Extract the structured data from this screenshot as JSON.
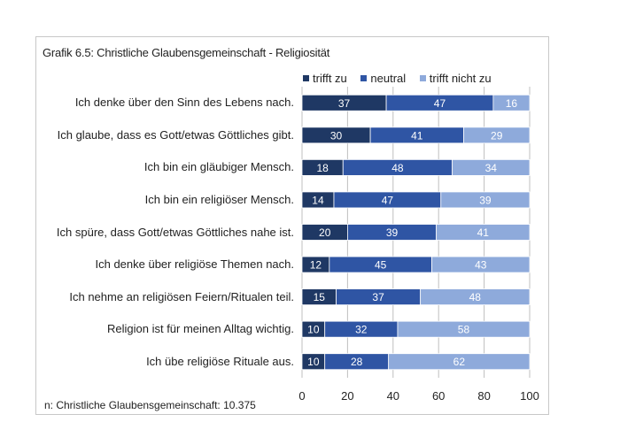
{
  "chart_data": {
    "type": "bar",
    "orientation": "horizontal",
    "stacked": true,
    "title": "Grafik 6.5: Christliche Glaubensgemeinschaft - Religiosität",
    "categories": [
      "Ich denke über den Sinn des Lebens nach.",
      "Ich glaube, dass es Gott/etwas Göttliches gibt.",
      "Ich bin ein gläubiger Mensch.",
      "Ich bin ein religiöser Mensch.",
      "Ich spüre, dass Gott/etwas Göttliches nahe ist.",
      "Ich denke über religiöse Themen nach.",
      "Ich nehme an religiösen Feiern/Ritualen teil.",
      "Religion ist für meinen Alltag wichtig.",
      "Ich übe religiöse Rituale aus."
    ],
    "series": [
      {
        "name": "trifft zu",
        "color": "#1f3864",
        "label_color": "#ffffff",
        "values": [
          37,
          30,
          18,
          14,
          20,
          12,
          15,
          10,
          10
        ]
      },
      {
        "name": "neutral",
        "color": "#2f55a4",
        "label_color": "#ffffff",
        "values": [
          47,
          41,
          48,
          47,
          39,
          45,
          37,
          32,
          28
        ]
      },
      {
        "name": "trifft nicht zu",
        "color": "#8eaadb",
        "label_color": "#ffffff",
        "values": [
          16,
          29,
          34,
          39,
          41,
          43,
          48,
          58,
          62
        ]
      }
    ],
    "xlim": [
      0,
      100
    ],
    "xticks": [
      "0",
      "20",
      "40",
      "60",
      "80",
      "100"
    ],
    "grid": true,
    "legend_position": "top-right"
  },
  "note": "n: Christliche Glaubensgemeinschaft: 10.375"
}
